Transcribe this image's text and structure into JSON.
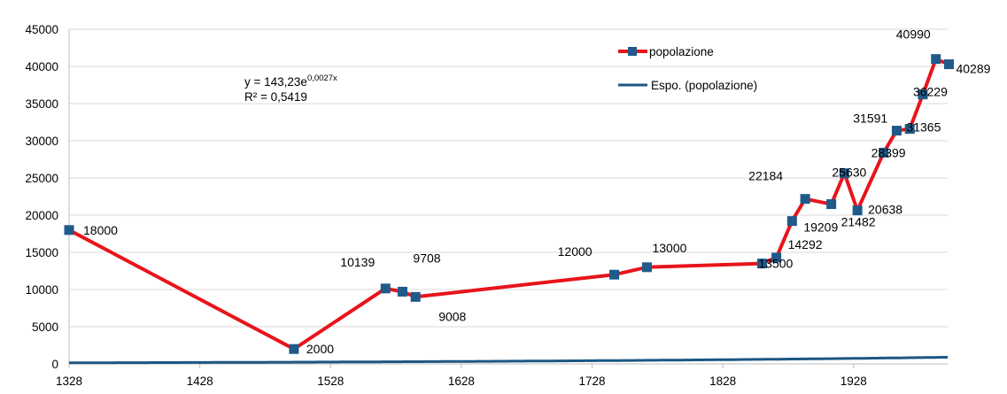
{
  "chart_data": {
    "type": "line",
    "title": "",
    "xlabel": "",
    "ylabel": "",
    "xlim": [
      1328,
      2000
    ],
    "ylim": [
      0,
      45000
    ],
    "x_ticks": [
      1328,
      1428,
      1528,
      1628,
      1728,
      1828,
      1928
    ],
    "y_ticks": [
      0,
      5000,
      10000,
      15000,
      20000,
      25000,
      30000,
      35000,
      40000,
      45000
    ],
    "grid": "horizontal",
    "legend_position": "top-right",
    "series": [
      {
        "name": "popolazione",
        "color": "#e8141b",
        "marker_color": "#1f5a8a",
        "points": [
          {
            "x": 1328,
            "y": 18000,
            "label": "18000"
          },
          {
            "x": 1500,
            "y": 2000,
            "label": "2000"
          },
          {
            "x": 1570,
            "y": 10139,
            "label": "10139"
          },
          {
            "x": 1583,
            "y": 9708,
            "label": "9708"
          },
          {
            "x": 1593,
            "y": 9008,
            "label": "9008"
          },
          {
            "x": 1745,
            "y": 12000,
            "label": "12000"
          },
          {
            "x": 1770,
            "y": 13000,
            "label": "13000"
          },
          {
            "x": 1858,
            "y": 13500,
            "label": "13500"
          },
          {
            "x": 1869,
            "y": 14292,
            "label": "14292"
          },
          {
            "x": 1881,
            "y": 19209,
            "label": "19209"
          },
          {
            "x": 1891,
            "y": 22184,
            "label": "22184"
          },
          {
            "x": 1911,
            "y": 21482,
            "label": "21482"
          },
          {
            "x": 1921,
            "y": 25630,
            "label": "25630"
          },
          {
            "x": 1931,
            "y": 20638,
            "label": "20638"
          },
          {
            "x": 1951,
            "y": 28399,
            "label": "28399"
          },
          {
            "x": 1961,
            "y": 31365,
            "label": "31365"
          },
          {
            "x": 1971,
            "y": 31591,
            "label": "31591"
          },
          {
            "x": 1981,
            "y": 36229,
            "label": "36229"
          },
          {
            "x": 1991,
            "y": 40990,
            "label": "40990"
          },
          {
            "x": 2001,
            "y": 40289,
            "label": "40289"
          }
        ]
      },
      {
        "name": "Espo. (popolazione)",
        "color": "#1b5784",
        "trendline": {
          "type": "exponential",
          "a": 143.23,
          "b": 0.0027
        }
      }
    ],
    "equation_line1_prefix": "y = 143,23e",
    "equation_line1_exp": "0,0027x",
    "equation_line2": "R² = 0,5419"
  }
}
